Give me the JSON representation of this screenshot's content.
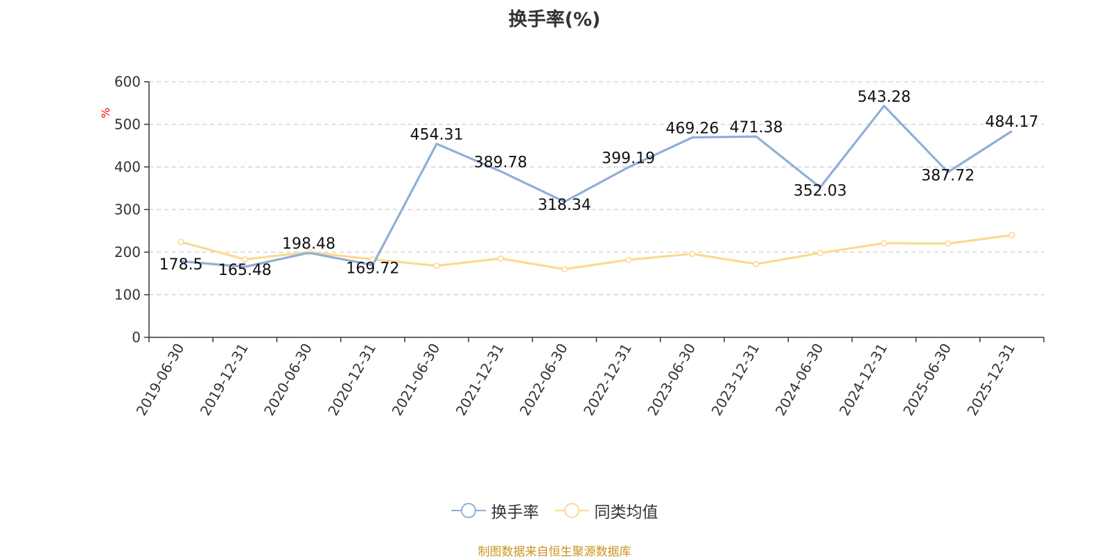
{
  "chart_data": {
    "type": "line",
    "title": "换手率(%)",
    "ylabel": "%",
    "categories": [
      "2019-06-30",
      "2019-12-31",
      "2020-06-30",
      "2020-12-31",
      "2021-06-30",
      "2021-12-31",
      "2022-06-30",
      "2022-12-31",
      "2023-06-30",
      "2023-12-31",
      "2024-06-30",
      "2024-12-31",
      "2025-06-30",
      "2025-12-31"
    ],
    "y_ticks": [
      "0",
      "100",
      "200",
      "300",
      "400",
      "500",
      "600"
    ],
    "ylim": [
      0,
      600
    ],
    "grid": true,
    "legend_position": "bottom",
    "series": [
      {
        "name": "换手率",
        "color": "#8eaed9",
        "values": [
          178.5,
          165.48,
          198.48,
          169.72,
          454.31,
          389.78,
          318.34,
          399.19,
          469.26,
          471.38,
          352.03,
          543.28,
          387.72,
          484.17
        ],
        "labels": [
          "178.5",
          "165.48",
          "198.48",
          "169.72",
          "454.31",
          "389.78",
          "318.34",
          "399.19",
          "469.26",
          "471.38",
          "352.03",
          "543.28",
          "387.72",
          "484.17"
        ]
      },
      {
        "name": "同类均值",
        "color": "#fcd98f",
        "values": [
          224,
          183,
          200,
          183,
          168,
          185,
          160,
          182,
          196,
          172,
          198,
          221,
          220,
          240
        ]
      }
    ]
  },
  "footer": {
    "source": "制图数据来自恒生聚源数据库"
  }
}
